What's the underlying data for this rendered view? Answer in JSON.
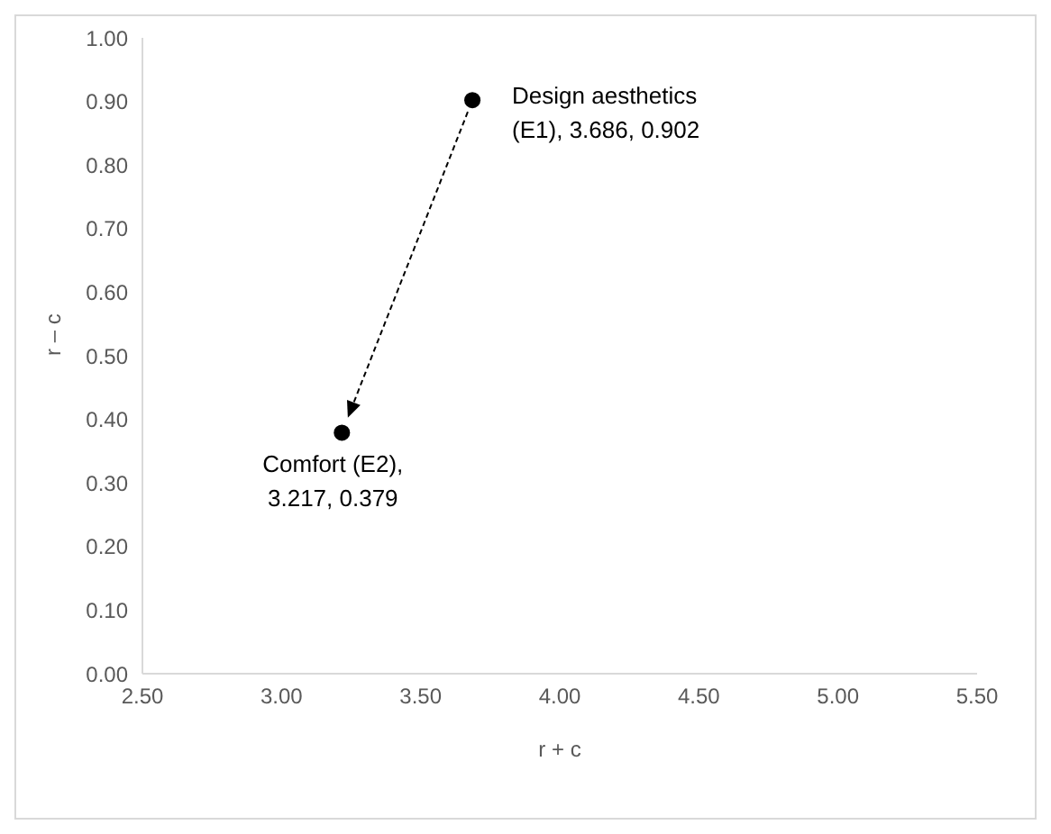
{
  "chart_data": {
    "type": "scatter",
    "xlabel": "r + c",
    "ylabel": "r – c",
    "series": [
      {
        "color": "#000000",
        "x": [
          3.686,
          3.217
        ],
        "values": [
          0.902,
          0.379
        ]
      }
    ],
    "annotations": [
      {
        "text": "Design aesthetics\n(E1), 3.686, 0.902",
        "x": 3.686,
        "y": 0.902
      },
      {
        "text": "Comfort (E2),\n3.217, 0.379",
        "x": 3.217,
        "y": 0.379
      }
    ],
    "xlim": [
      2.5,
      5.5
    ],
    "xticks": [
      {
        "value": 2.5,
        "label": "2.50"
      },
      {
        "value": 3,
        "label": "3.00"
      },
      {
        "value": 3.5,
        "label": "3.50"
      },
      {
        "value": 4,
        "label": "4.00"
      },
      {
        "value": 4.5,
        "label": "4.50"
      },
      {
        "value": 5,
        "label": "5.00"
      },
      {
        "value": 5.5,
        "label": "5.50"
      }
    ],
    "ylim": [
      0,
      1
    ],
    "yticks": [
      {
        "value": 0,
        "label": "0.00"
      },
      {
        "value": 0.1,
        "label": "0.10"
      },
      {
        "value": 0.2,
        "label": "0.20"
      },
      {
        "value": 0.3,
        "label": "0.30"
      },
      {
        "value": 0.4,
        "label": "0.40"
      },
      {
        "value": 0.5,
        "label": "0.50"
      },
      {
        "value": 0.6,
        "label": "0.60"
      },
      {
        "value": 0.7,
        "label": "0.70"
      },
      {
        "value": 0.8,
        "label": "0.80"
      },
      {
        "value": 0.9,
        "label": "0.90"
      },
      {
        "value": 1,
        "label": "1.00"
      }
    ],
    "grid": false,
    "legend": false,
    "marker": "circle"
  }
}
